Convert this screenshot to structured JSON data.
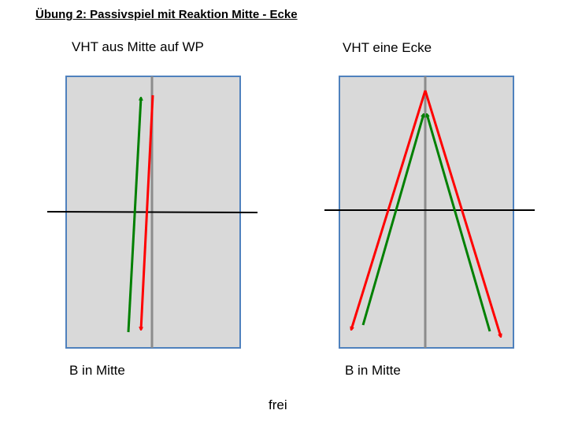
{
  "title": "Übung 2: Passivspiel mit Reaktion Mitte - Ecke",
  "colors": {
    "table_fill": "#d9d9d9",
    "table_border": "#4f81bd",
    "center_line": "#8c8c8c",
    "net_line": "#000000",
    "arrow_red": "#ff0000",
    "arrow_green": "#008000"
  },
  "left_panel": {
    "heading": "VHT aus Mitte auf WP",
    "footer": "B in Mitte"
  },
  "right_panel": {
    "heading": "VHT eine Ecke",
    "footer": "B in Mitte"
  },
  "bottom_label": "frei"
}
